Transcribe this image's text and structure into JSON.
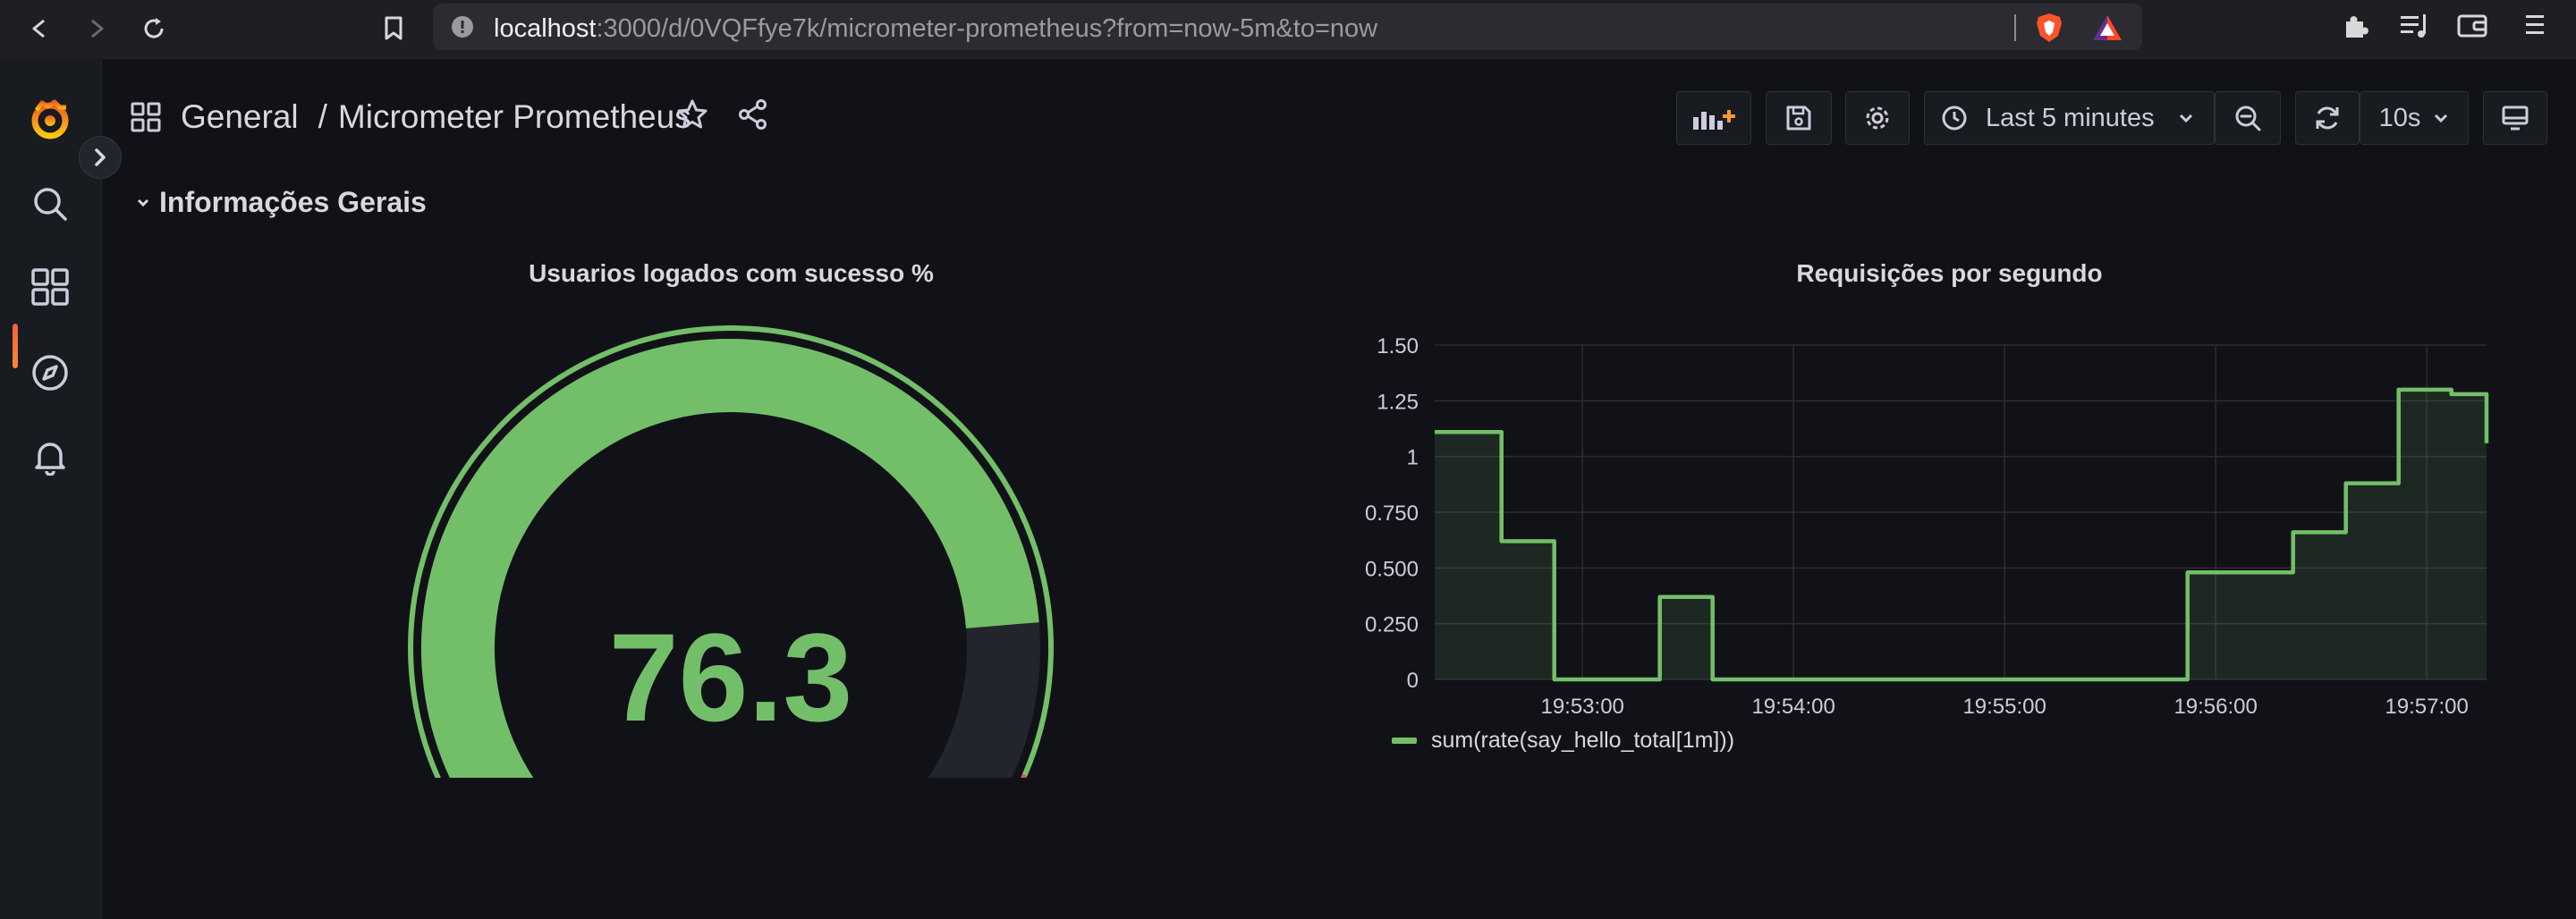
{
  "browser": {
    "url_host": "localhost",
    "url_rest": ":3000/d/0VQFfye7k/micrometer-prometheus?from=now-5m&to=now",
    "icons": [
      "back-icon",
      "forward-icon",
      "reload-icon",
      "bookmark-icon",
      "site-info-icon",
      "brave-shields-icon",
      "brave-rewards-icon",
      "extensions-icon",
      "reading-list-icon",
      "wallet-icon",
      "menu-icon"
    ]
  },
  "sidebar": {
    "items": [
      {
        "name": "grafana-logo",
        "icon": "grafana-logo"
      },
      {
        "name": "search",
        "icon": "search-icon"
      },
      {
        "name": "dashboards",
        "icon": "dashboards-icon",
        "active": true
      },
      {
        "name": "explore",
        "icon": "compass-icon"
      },
      {
        "name": "alerting",
        "icon": "bell-icon"
      }
    ]
  },
  "header": {
    "folder": "General",
    "separator": "/",
    "title": "Micrometer Prometheus"
  },
  "toolbar": {
    "time_range": "Last 5 minutes",
    "refresh_interval": "10s"
  },
  "row": {
    "title": "Informações Gerais"
  },
  "gauge_panel": {
    "title": "Usuarios logados com sucesso %",
    "value": 76.3,
    "display": "76.3",
    "min": 0,
    "max": 100,
    "threshold_red": 85,
    "colors": {
      "green": "#73bf69",
      "red": "#f2495c",
      "track": "#22252b"
    }
  },
  "graph_panel": {
    "title": "Requisições por segundo"
  },
  "chart_data": {
    "type": "area",
    "title": "Requisições por segundo",
    "y_ticks": [
      "0",
      "0.250",
      "0.500",
      "0.750",
      "1",
      "1.25",
      "1.50"
    ],
    "ylim": [
      0,
      1.5
    ],
    "x_ticks": [
      "19:53:00",
      "19:54:00",
      "19:55:00",
      "19:56:00",
      "19:57:00"
    ],
    "x_range": [
      "19:52:18",
      "19:57:17"
    ],
    "interpolation": "step-after",
    "series": [
      {
        "name": "sum(rate(say_hello_total[1m]))",
        "color": "#73bf69",
        "x": [
          "19:52:18",
          "19:52:37",
          "19:52:52",
          "19:53:22",
          "19:53:37",
          "19:54:22",
          "19:55:52",
          "19:56:22",
          "19:56:37",
          "19:56:52",
          "19:57:07",
          "19:57:17"
        ],
        "values": [
          1.11,
          0.62,
          0,
          0.37,
          0,
          0,
          0.48,
          0.66,
          0.88,
          1.3,
          1.28,
          1.06
        ]
      }
    ],
    "grid": true,
    "legend": "bottom-left"
  }
}
